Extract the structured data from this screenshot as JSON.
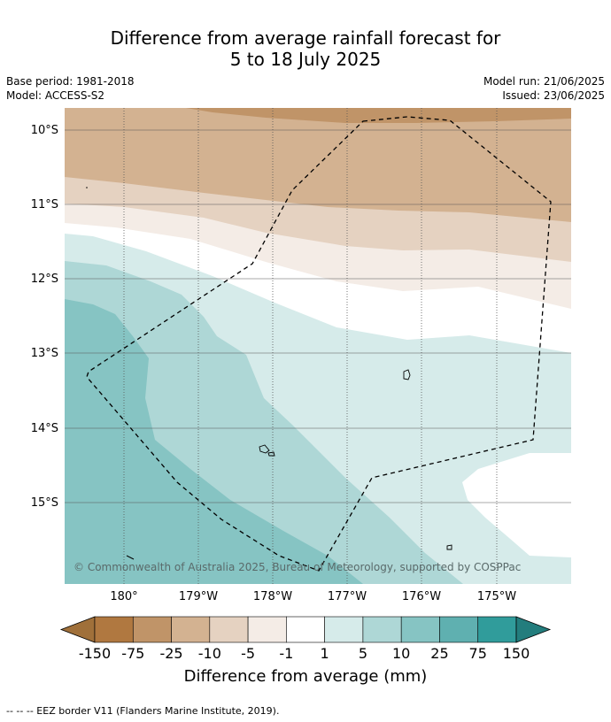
{
  "title_line1": "Difference from average rainfall forecast for",
  "title_line2": "5 to 18 July 2025",
  "meta": {
    "base_period": "Base period: 1981-2018",
    "model": "Model: ACCESS-S2",
    "model_run": "Model run: 21/06/2025",
    "issued": "Issued: 23/06/2025"
  },
  "lat_labels": [
    "10°S",
    "11°S",
    "12°S",
    "13°S",
    "14°S",
    "15°S"
  ],
  "lon_labels": [
    "180°",
    "179°W",
    "178°W",
    "177°W",
    "176°W",
    "175°W"
  ],
  "copyright": "© Commonwealth of Australia 2025, Bureau of Meteorology, supported by COSPPac",
  "colorbar": {
    "title": "Difference from average (mm)",
    "ticks": [
      "-150",
      "-75",
      "-25",
      "-10",
      "-5",
      "-1",
      "1",
      "5",
      "10",
      "25",
      "75",
      "150"
    ],
    "colors": [
      "#a0703a",
      "#b07840",
      "#c09468",
      "#d3b291",
      "#e5d2c1",
      "#f4ece6",
      "#ffffff",
      "#d6ebea",
      "#aed7d6",
      "#86c4c3",
      "#5fb0b0",
      "#309c9b",
      "#237d7d"
    ]
  },
  "footer": "--  --  -- EEZ border V11 (Flanders Marine Institute, 2019)."
}
